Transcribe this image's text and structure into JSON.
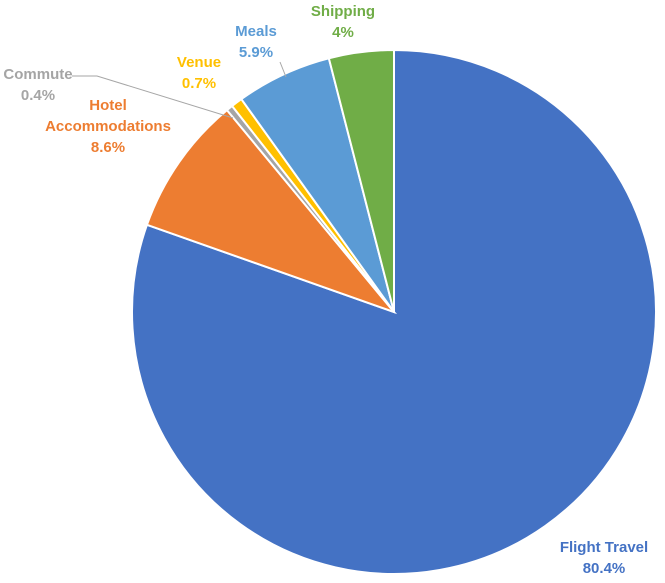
{
  "chart_data": {
    "type": "pie",
    "start": "12 o'clock",
    "direction": "clockwise",
    "slices": [
      {
        "label": "Flight Travel",
        "value": 80.4,
        "value_text": "80.4%",
        "color": "#4472C4",
        "label_color": "#4472C4"
      },
      {
        "label": "Hotel Accommodations",
        "label_lines": [
          "Hotel",
          "Accommodations"
        ],
        "value": 8.6,
        "value_text": "8.6%",
        "color": "#ED7D31",
        "label_color": "#ED7D31"
      },
      {
        "label": "Commute",
        "value": 0.4,
        "value_text": "0.4%",
        "color": "#A5A5A5",
        "label_color": "#A5A5A5"
      },
      {
        "label": "Venue",
        "value": 0.7,
        "value_text": "0.7%",
        "color": "#FFC000",
        "label_color": "#FFC000"
      },
      {
        "label": "Meals",
        "value": 5.9,
        "value_text": "5.9%",
        "color": "#5B9BD5",
        "label_color": "#5B9BD5"
      },
      {
        "label": "Shipping",
        "value": 4,
        "value_text": "4%",
        "color": "#70AD47",
        "label_color": "#70AD47"
      }
    ],
    "legend": "none"
  }
}
